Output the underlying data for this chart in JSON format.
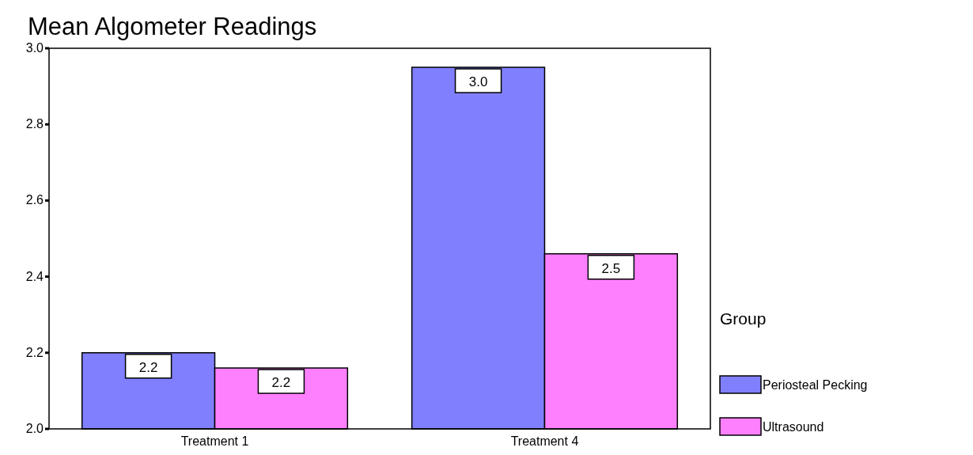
{
  "chart_data": {
    "type": "bar",
    "title": "Mean Algometer Readings",
    "legend_title": "Group",
    "categories": [
      "Treatment 1",
      "Treatment 4"
    ],
    "series": [
      {
        "name": "Periosteal Pecking",
        "color": "#8080ff",
        "values": [
          2.2,
          2.95
        ],
        "value_labels": [
          "2.2",
          "3.0"
        ]
      },
      {
        "name": "Ultrasound",
        "color": "#ff80ff",
        "values": [
          2.16,
          2.46
        ],
        "value_labels": [
          "2.2",
          "2.5"
        ]
      }
    ],
    "ylim": [
      2.0,
      3.0
    ],
    "yticks": [
      {
        "value": 2.0,
        "label": "2.0"
      },
      {
        "value": 2.2,
        "label": "2.2"
      },
      {
        "value": 2.4,
        "label": "2.4"
      },
      {
        "value": 2.6,
        "label": "2.6"
      },
      {
        "value": 2.8,
        "label": "2.8"
      },
      {
        "value": 3.0,
        "label": "3.0"
      }
    ],
    "grid": false,
    "legend": "right"
  }
}
